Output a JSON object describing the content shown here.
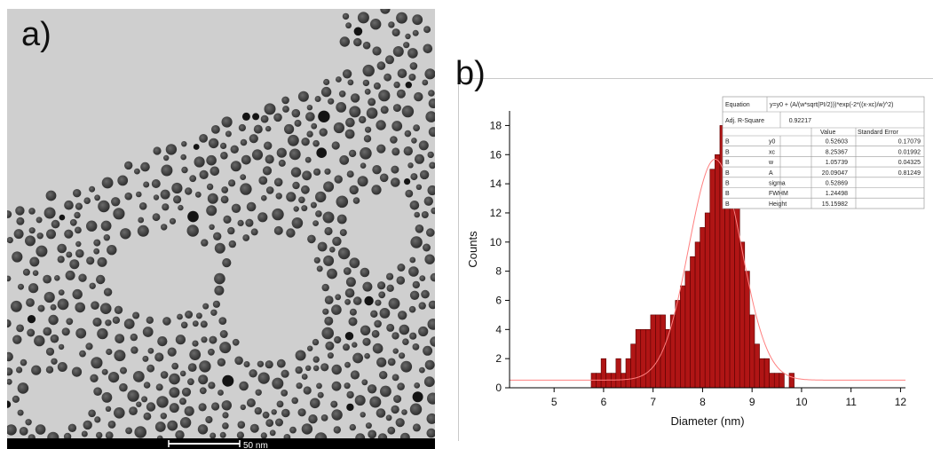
{
  "panels": {
    "a_label": "a)",
    "b_label": "b)"
  },
  "tem_image": {
    "scale_bar_label": "50 nm",
    "colors": {
      "background": "#cfcfcf",
      "particle": "#3c3c3c",
      "bar_strip": "#000000"
    }
  },
  "chart_data": {
    "type": "bar",
    "xlabel": "Diameter (nm)",
    "ylabel": "Counts",
    "xlim": [
      4.1,
      12.1
    ],
    "ylim": [
      0,
      19
    ],
    "xticks": [
      5,
      6,
      7,
      8,
      9,
      10,
      11,
      12
    ],
    "yticks": [
      0,
      2,
      4,
      6,
      8,
      10,
      12,
      14,
      16,
      18
    ],
    "bin_width": 0.1,
    "bins": {
      "x": [
        5.8,
        5.9,
        6.0,
        6.1,
        6.2,
        6.3,
        6.4,
        6.5,
        6.6,
        6.7,
        6.8,
        6.9,
        7.0,
        7.1,
        7.2,
        7.3,
        7.4,
        7.5,
        7.6,
        7.7,
        7.8,
        7.9,
        8.0,
        8.1,
        8.2,
        8.3,
        8.4,
        8.5,
        8.6,
        8.7,
        8.8,
        8.9,
        9.0,
        9.1,
        9.2,
        9.3,
        9.4,
        9.5,
        9.6,
        9.7,
        9.8
      ],
      "counts": [
        1,
        1,
        2,
        1,
        1,
        2,
        1,
        2,
        3,
        4,
        4,
        4,
        5,
        5,
        5,
        4,
        5,
        6,
        7,
        8,
        9,
        10,
        11,
        12,
        15,
        16,
        18,
        15,
        14,
        13,
        10,
        8,
        5,
        3,
        2,
        2,
        1,
        1,
        1,
        0,
        1
      ]
    },
    "fit": {
      "model": "gauss",
      "y0": 0.52603,
      "xc": 8.25367,
      "w": 1.05739,
      "A": 20.09047
    },
    "colors": {
      "bar_fill": "#b01515",
      "bar_edge": "#5a0000",
      "fit_line": "#ff8080"
    },
    "fit_table": {
      "equation_label": "Equation",
      "equation": "y=y0 + (A/(w*sqrt(PI/2)))*exp(-2*((x-xc)/w)^2)",
      "adj_r_label": "Adj. R-Square",
      "adj_r_value": "0.92217",
      "col_value": "Value",
      "col_error": "Standard Error",
      "rows": [
        {
          "group": "B",
          "param": "y0",
          "value": "0.52603",
          "error": "0.17079"
        },
        {
          "group": "B",
          "param": "xc",
          "value": "8.25367",
          "error": "0.01992"
        },
        {
          "group": "B",
          "param": "w",
          "value": "1.05739",
          "error": "0.04325"
        },
        {
          "group": "B",
          "param": "A",
          "value": "20.09047",
          "error": "0.81249"
        },
        {
          "group": "B",
          "param": "sigma",
          "value": "0.52869",
          "error": ""
        },
        {
          "group": "B",
          "param": "FWHM",
          "value": "1.24498",
          "error": ""
        },
        {
          "group": "B",
          "param": "Height",
          "value": "15.15982",
          "error": ""
        }
      ]
    }
  }
}
